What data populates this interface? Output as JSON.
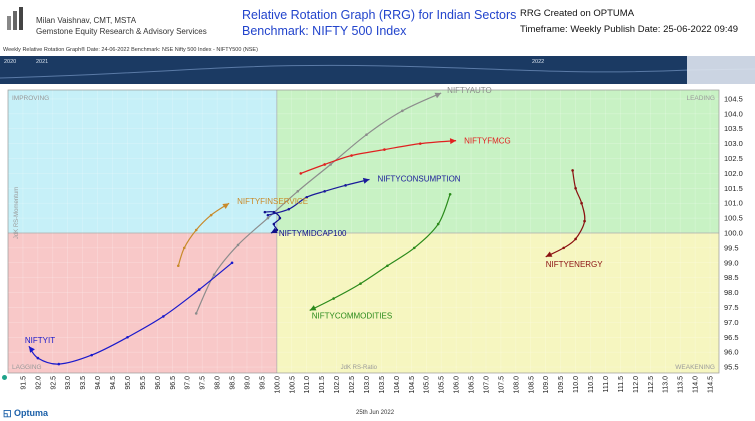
{
  "header": {
    "author_line1": "Milan Vaishnav, CMT, MSTA",
    "author_line2": "Gemstone Equity Research & Advisory Services",
    "title_line1": "Relative Rotation Graph (RRG) for Indian Sectors",
    "title_line2": "Benchmark: NIFTY 500 Index",
    "created": "RRG Created on OPTUMA",
    "timeframe": "Timeframe: Weekly   Publish Date: 25-06-2022 09:49",
    "subinfo": "Weekly Relative Rotation Graph®    Date: 24-06-2022  Benchmark: NSE Nifty 500 Index - NIFTY500 (NSE)"
  },
  "footer": {
    "logo_text": "Optuma",
    "date": "25th Jun 2022"
  },
  "colors": {
    "improving": "#c6f0f8",
    "leading": "#c8f2c4",
    "lagging": "#f8c8c8",
    "weakening": "#f6f6c0",
    "timeline": "#1b3a63"
  },
  "chart_data": {
    "type": "scatter",
    "title": "Relative Rotation Graph (RRG) for Indian Sectors",
    "xlabel": "JdK RS-Ratio",
    "ylabel": "JdK RS-Momentum",
    "xlim": [
      91.0,
      114.8
    ],
    "ylim": [
      95.3,
      104.8
    ],
    "center": [
      100,
      100
    ],
    "x_ticks": [
      "91.5",
      "92.0",
      "92.5",
      "93.0",
      "93.5",
      "94.0",
      "94.5",
      "95.0",
      "95.5",
      "96.0",
      "96.5",
      "97.0",
      "97.5",
      "98.0",
      "98.5",
      "99.0",
      "99.5",
      "100.0",
      "100.5",
      "101.0",
      "101.5",
      "102.0",
      "102.5",
      "103.0",
      "103.5",
      "104.0",
      "104.5",
      "105.0",
      "105.5",
      "106.0",
      "106.5",
      "107.0",
      "107.5",
      "108.0",
      "108.5",
      "109.0",
      "109.5",
      "110.0",
      "110.5",
      "111.0",
      "111.5",
      "112.0",
      "112.5",
      "113.0",
      "113.5",
      "114.0",
      "114.5"
    ],
    "y_ticks": [
      "95.5",
      "96.0",
      "96.5",
      "97.0",
      "97.5",
      "98.0",
      "98.5",
      "99.0",
      "99.5",
      "100.0",
      "100.5",
      "101.0",
      "101.5",
      "102.0",
      "102.5",
      "103.0",
      "103.5",
      "104.0",
      "104.5"
    ],
    "quadrants": {
      "improving": "IMPROVING",
      "leading": "LEADING",
      "lagging": "LAGGING",
      "weakening": "WEAKENING"
    },
    "timeline_labels": [
      "2020",
      "2021",
      "2022"
    ],
    "series": [
      {
        "name": "NIFTYAUTO",
        "color": "#8c8c8c",
        "points": [
          [
            97.3,
            97.3
          ],
          [
            97.9,
            98.6
          ],
          [
            98.7,
            99.6
          ],
          [
            99.7,
            100.5
          ],
          [
            100.7,
            101.4
          ],
          [
            101.8,
            102.3
          ],
          [
            103.0,
            103.3
          ],
          [
            104.2,
            104.1
          ],
          [
            105.5,
            104.7
          ]
        ]
      },
      {
        "name": "NIFTYFMCG",
        "color": "#e02020",
        "points": [
          [
            100.8,
            102.0
          ],
          [
            101.6,
            102.3
          ],
          [
            102.5,
            102.6
          ],
          [
            103.6,
            102.8
          ],
          [
            104.8,
            103.0
          ],
          [
            106.0,
            103.1
          ]
        ]
      },
      {
        "name": "NIFTYCONSUMPTION",
        "color": "#1a1a9a",
        "points": [
          [
            99.7,
            100.6
          ],
          [
            100.4,
            100.8
          ],
          [
            101.0,
            101.2
          ],
          [
            101.6,
            101.4
          ],
          [
            102.3,
            101.6
          ],
          [
            103.1,
            101.8
          ]
        ]
      },
      {
        "name": "NIFTYFINSERVICE",
        "color": "#c88a2a",
        "points": [
          [
            96.7,
            98.9
          ],
          [
            96.9,
            99.5
          ],
          [
            97.3,
            100.1
          ],
          [
            97.8,
            100.6
          ],
          [
            98.4,
            101.0
          ]
        ]
      },
      {
        "name": "NIFTYMIDCAP100",
        "color": "#10108a",
        "points": [
          [
            99.6,
            100.7
          ],
          [
            99.9,
            100.7
          ],
          [
            100.1,
            100.5
          ],
          [
            99.9,
            100.3
          ],
          [
            100.0,
            100.1
          ],
          [
            99.8,
            100.0
          ]
        ]
      },
      {
        "name": "NIFTYENERGY",
        "color": "#8a1010",
        "points": [
          [
            109.9,
            102.1
          ],
          [
            110.0,
            101.5
          ],
          [
            110.2,
            101.0
          ],
          [
            110.3,
            100.4
          ],
          [
            110.0,
            99.8
          ],
          [
            109.6,
            99.5
          ],
          [
            109.0,
            99.2
          ]
        ]
      },
      {
        "name": "NIFTYCOMMODITIES",
        "color": "#2a8a1a",
        "points": [
          [
            105.8,
            101.3
          ],
          [
            105.4,
            100.3
          ],
          [
            104.6,
            99.5
          ],
          [
            103.7,
            98.9
          ],
          [
            102.8,
            98.3
          ],
          [
            101.9,
            97.8
          ],
          [
            101.1,
            97.4
          ]
        ]
      },
      {
        "name": "NIFTYIT",
        "color": "#1a1acc",
        "points": [
          [
            98.5,
            99.0
          ],
          [
            97.4,
            98.1
          ],
          [
            96.2,
            97.2
          ],
          [
            95.0,
            96.5
          ],
          [
            93.8,
            95.9
          ],
          [
            92.7,
            95.6
          ],
          [
            92.0,
            95.8
          ],
          [
            91.7,
            96.2
          ]
        ]
      }
    ]
  }
}
